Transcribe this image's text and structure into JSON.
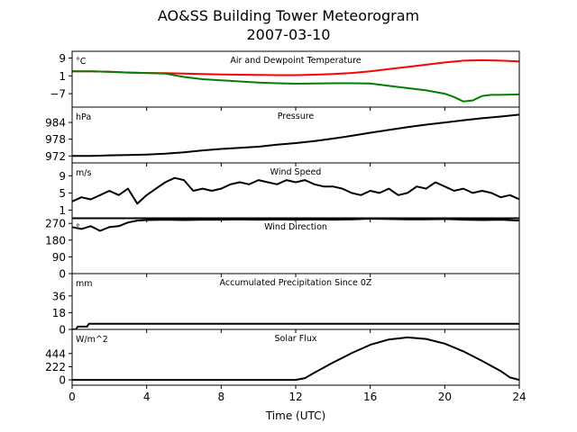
{
  "figure": {
    "title_line1": "AO&SS Building Tower Meteorogram",
    "title_line2": "2007-03-10",
    "xlabel": "Time (UTC)",
    "xticks": [
      0,
      4,
      8,
      12,
      16,
      20,
      24
    ],
    "xlim": [
      0,
      24
    ]
  },
  "chart_data": [
    {
      "type": "line",
      "title": "Air and Dewpoint Temperature",
      "unit": "°C",
      "ylim": [
        -13,
        12
      ],
      "yticks": [
        -7,
        1,
        9
      ],
      "series": [
        {
          "color": "#ff0000",
          "x": [
            0,
            1,
            2,
            3,
            4,
            5,
            6,
            7,
            8,
            9,
            10,
            11,
            12,
            13,
            14,
            15,
            16,
            17,
            18,
            19,
            20,
            21,
            22,
            23,
            24
          ],
          "y": [
            3.0,
            3.0,
            2.8,
            2.5,
            2.3,
            2.2,
            2.0,
            1.8,
            1.6,
            1.5,
            1.4,
            1.3,
            1.3,
            1.5,
            1.8,
            2.3,
            3.0,
            4.0,
            5.0,
            6.0,
            7.0,
            7.8,
            8.0,
            7.8,
            7.5
          ]
        },
        {
          "color": "#008000",
          "x": [
            0,
            1,
            2,
            3,
            4,
            5,
            6,
            7,
            8,
            9,
            10,
            11,
            12,
            13,
            14,
            15,
            16,
            17,
            18,
            19,
            20,
            20.5,
            21,
            21.5,
            22,
            22.5,
            23,
            24
          ],
          "y": [
            3.0,
            3.0,
            2.8,
            2.5,
            2.3,
            2.0,
            0.5,
            -0.5,
            -1.0,
            -1.5,
            -2.0,
            -2.3,
            -2.5,
            -2.4,
            -2.3,
            -2.3,
            -2.4,
            -3.5,
            -4.5,
            -5.5,
            -7.0,
            -8.5,
            -10.5,
            -10.0,
            -8.0,
            -7.5,
            -7.5,
            -7.3
          ]
        }
      ]
    },
    {
      "type": "line",
      "title": "Pressure",
      "unit": "hPa",
      "ylim": [
        969.5,
        989.5
      ],
      "yticks": [
        972,
        978,
        984
      ],
      "series": [
        {
          "color": "#000000",
          "x": [
            0,
            1,
            2,
            3,
            4,
            5,
            6,
            7,
            8,
            9,
            10,
            11,
            12,
            13,
            14,
            15,
            16,
            17,
            18,
            19,
            20,
            21,
            22,
            23,
            24
          ],
          "y": [
            972.0,
            972.0,
            972.2,
            972.3,
            972.5,
            972.8,
            973.3,
            974.0,
            974.5,
            974.9,
            975.3,
            976.0,
            976.6,
            977.3,
            978.2,
            979.2,
            980.3,
            981.3,
            982.3,
            983.2,
            984.0,
            984.8,
            985.5,
            986.1,
            986.8
          ]
        }
      ]
    },
    {
      "type": "line",
      "title": "Wind Speed",
      "unit": "m/s",
      "ylim": [
        -1,
        12
      ],
      "yticks": [
        1,
        5,
        9
      ],
      "series": [
        {
          "color": "#000000",
          "x": [
            0,
            0.5,
            1,
            1.5,
            2,
            2.5,
            3,
            3.5,
            4,
            4.5,
            5,
            5.5,
            6,
            6.5,
            7,
            7.5,
            8,
            8.5,
            9,
            9.5,
            10,
            10.5,
            11,
            11.5,
            12,
            12.5,
            13,
            13.5,
            14,
            14.5,
            15,
            15.5,
            16,
            16.5,
            17,
            17.5,
            18,
            18.5,
            19,
            19.5,
            20,
            20.5,
            21,
            21.5,
            22,
            22.5,
            23,
            23.5,
            24
          ],
          "y": [
            3.0,
            4.0,
            3.5,
            4.5,
            5.5,
            4.5,
            6.0,
            2.5,
            4.5,
            6.0,
            7.5,
            8.5,
            8.0,
            5.5,
            6.0,
            5.5,
            6.0,
            7.0,
            7.5,
            7.0,
            8.0,
            7.5,
            7.0,
            8.0,
            7.5,
            8.0,
            7.0,
            6.5,
            6.5,
            6.0,
            5.0,
            4.5,
            5.5,
            5.0,
            6.0,
            4.5,
            5.0,
            6.5,
            6.0,
            7.5,
            6.5,
            5.5,
            6.0,
            5.0,
            5.5,
            5.0,
            4.0,
            4.5,
            3.5
          ]
        }
      ]
    },
    {
      "type": "line",
      "title": "Wind Direction",
      "unit": "°",
      "ylim": [
        0,
        300
      ],
      "yticks": [
        0,
        90,
        180,
        270
      ],
      "series": [
        {
          "color": "#000000",
          "x": [
            0,
            0.5,
            1,
            1.5,
            2,
            2.5,
            3,
            3.5,
            4,
            5,
            6,
            7,
            8,
            9,
            10,
            11,
            12,
            13,
            14,
            15,
            16,
            17,
            18,
            19,
            20,
            21,
            22,
            23,
            24
          ],
          "y": [
            250,
            240,
            255,
            230,
            250,
            255,
            275,
            285,
            288,
            290,
            288,
            290,
            290,
            292,
            290,
            292,
            290,
            292,
            290,
            292,
            295,
            293,
            292,
            292,
            293,
            290,
            288,
            290,
            285
          ]
        }
      ]
    },
    {
      "type": "line",
      "title": "Accumulated Precipitation Since 0Z",
      "unit": "mm",
      "ylim": [
        0,
        60
      ],
      "yticks": [
        0,
        18,
        36
      ],
      "series": [
        {
          "color": "#000000",
          "x": [
            0,
            0.2,
            0.3,
            0.8,
            0.9,
            24
          ],
          "y": [
            0,
            0,
            3,
            3,
            6,
            6
          ]
        }
      ]
    },
    {
      "type": "line",
      "title": "Solar Flux",
      "unit": "W/m^2",
      "ylim": [
        -90,
        850
      ],
      "yticks": [
        0,
        222,
        444
      ],
      "series": [
        {
          "color": "#000000",
          "x": [
            0,
            4,
            8,
            12,
            12.5,
            13,
            14,
            15,
            16,
            17,
            18,
            19,
            20,
            21,
            22,
            23,
            23.5,
            24
          ],
          "y": [
            0,
            0,
            0,
            0,
            30,
            120,
            290,
            450,
            590,
            680,
            715,
            690,
            610,
            480,
            320,
            150,
            40,
            0
          ]
        }
      ]
    }
  ]
}
